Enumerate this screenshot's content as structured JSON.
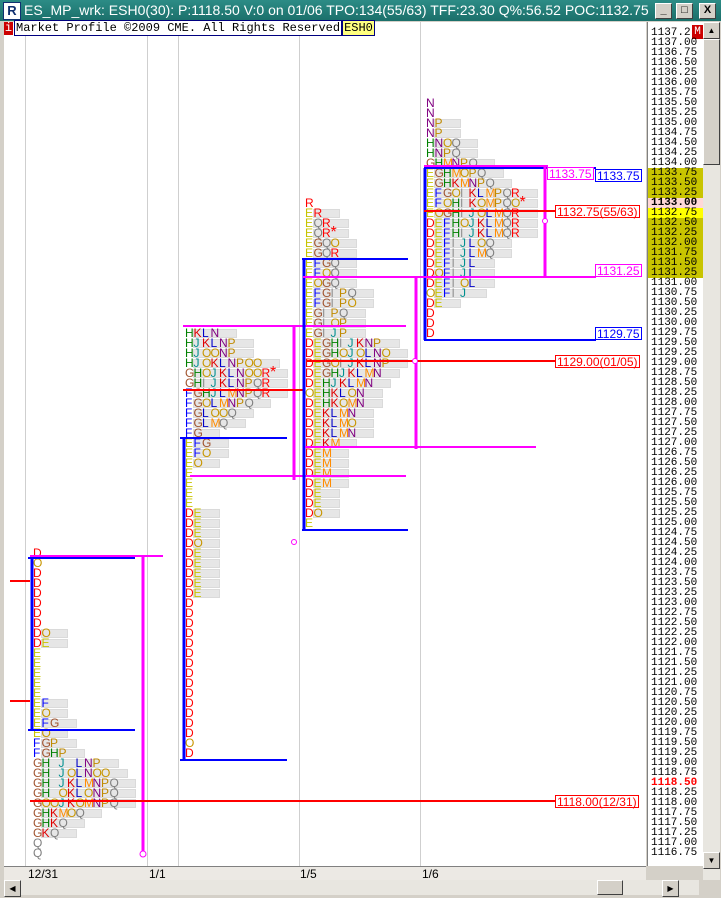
{
  "window": {
    "title": "ES_MP_wrk: ESH0(30): P:1118.50 V:0 on 01/06 TPO:134(55/63)   TFF:23.30 Q%:56.52 POC:1132.75",
    "icon": "R",
    "buttons": {
      "minimize": "_",
      "maximize": "□",
      "close": "X"
    }
  },
  "infobar": {
    "info_icon": "i",
    "copyright": "Market Profile ©2009 CME. All Rights Reserved",
    "symbol": "ESH0",
    "mode_badge": "M"
  },
  "colors": {
    "tpo": {
      "D": "#ff0000",
      "E": "#c8c400",
      "F": "#0000ff",
      "G": "#a0522d",
      "H": "#008000",
      "I": "#909090",
      "J": "#009090",
      "K": "#e00000",
      "L": "#0000c8",
      "M": "#ff8c00",
      "N": "#800080",
      "O": "#c89600",
      "P": "#c08a00",
      "Q": "#808080",
      "R": "#ff0000",
      "*": "#ff0000"
    },
    "value_area": "#0000ff",
    "initial_balance": "#ff00ff",
    "poc": "#ff0000",
    "axis_highlight": "#c8c400",
    "axis_last_price": "#ff0000"
  },
  "chart_data": {
    "type": "market-profile",
    "price_axis": {
      "max": 1137.25,
      "min": 1116.75,
      "step": 0.25,
      "top_label_truncated": "1137.2",
      "last_price": 1118.5,
      "poc_price": 1133.0,
      "current_poc": 1132.75,
      "highlight_range": [
        1131.25,
        1133.75
      ]
    },
    "dates": [
      "12/31",
      "1/1",
      "1/5",
      "1/6"
    ],
    "profiles": [
      {
        "date": "12/31",
        "top_price": 1124.25,
        "rows": [
          "D",
          "O",
          "D",
          "D",
          "D",
          "D",
          "D",
          "D",
          "DO",
          "DE",
          "E",
          "E",
          "E",
          "E",
          "E",
          "EF",
          "EO",
          "EFG",
          "EO",
          "FGP",
          "FGHP",
          "GH J LNP",
          "GH JOLNOO",
          "GH JKLMNPQ",
          "GH OKLONPQ",
          "GOOJKOMNPQ",
          "GHKMOQ",
          "GHKQ",
          "GKQ",
          "Q",
          "Q"
        ]
      },
      {
        "date": "1/1",
        "top_price": 1129.75,
        "rows": [
          "HKLN",
          "HJKLNP",
          "HJOONP",
          "HJOKLNPOO",
          "GHOJKLNOOR*",
          "GHIJKLNPQR",
          "FGHJLMNPQR",
          "FGOLMNPQ",
          "FGLOOQ",
          "FGLMQ",
          "FG",
          "EFG",
          "EFO",
          "EO",
          "E",
          "E",
          "E",
          "E",
          "DE",
          "DE",
          "DE",
          "DO",
          "DE",
          "DE",
          "DE",
          "DE",
          "DE",
          "D",
          "D",
          "D",
          "D",
          "D",
          "D",
          "D",
          "D",
          "D",
          "D",
          "D",
          "D",
          "D",
          "D",
          "O",
          "D"
        ]
      },
      {
        "date": "1/5",
        "top_price": 1133.0,
        "rows": [
          "R",
          "ER",
          "EQR",
          "EQR*",
          "EGQO",
          "EGQR",
          "EFGQ",
          "EFOQ",
          "EOGQ",
          "EFGIPQ",
          "EFGIPO",
          "EGIPQ",
          "EGIOP",
          "EGIJP",
          "DEGHIJKNP",
          "DEGHOJOLNO",
          "DEGOIJKLNP",
          "DEGHJKLMN",
          "DEHJKLMN",
          "OEHKLON",
          "DEHKOMN",
          "DEKLMN",
          "DEKLMO",
          "DEKLMN",
          "DEKM",
          "DEM",
          "DEM",
          "DEM",
          "DEM",
          "DE",
          "DE",
          "DO",
          "E"
        ]
      },
      {
        "date": "1/6",
        "top_price": 1135.5,
        "rows": [
          "N",
          "N",
          "NP",
          "NP",
          "HNOQ",
          "HNPQ",
          "GHMNPQ",
          "EGHMOPQ",
          "EGHKMNPQ",
          "EFGOIKLMPQR",
          "EFOHIKOMPQO*",
          "EOGHIJOLMQR",
          "DEFHOJKLMQR",
          "DEFHIJKLMQR",
          "DEFIJLOQ",
          "DEFIJLMQ",
          "DEFIJL",
          "DOFIJL",
          "DEFIOL",
          "OEFIJ",
          "DE",
          "D",
          "D",
          "D"
        ]
      }
    ],
    "level_labels": {
      "poc_1231": "1118.00(12/31)",
      "poc_0105": "1129.00(01/05)",
      "poc_current": "1132.75(55/63)",
      "ib_high": "1133.75",
      "ib_low": "1131.25",
      "va_high": "1133.75",
      "va_low": "1129.75"
    }
  }
}
